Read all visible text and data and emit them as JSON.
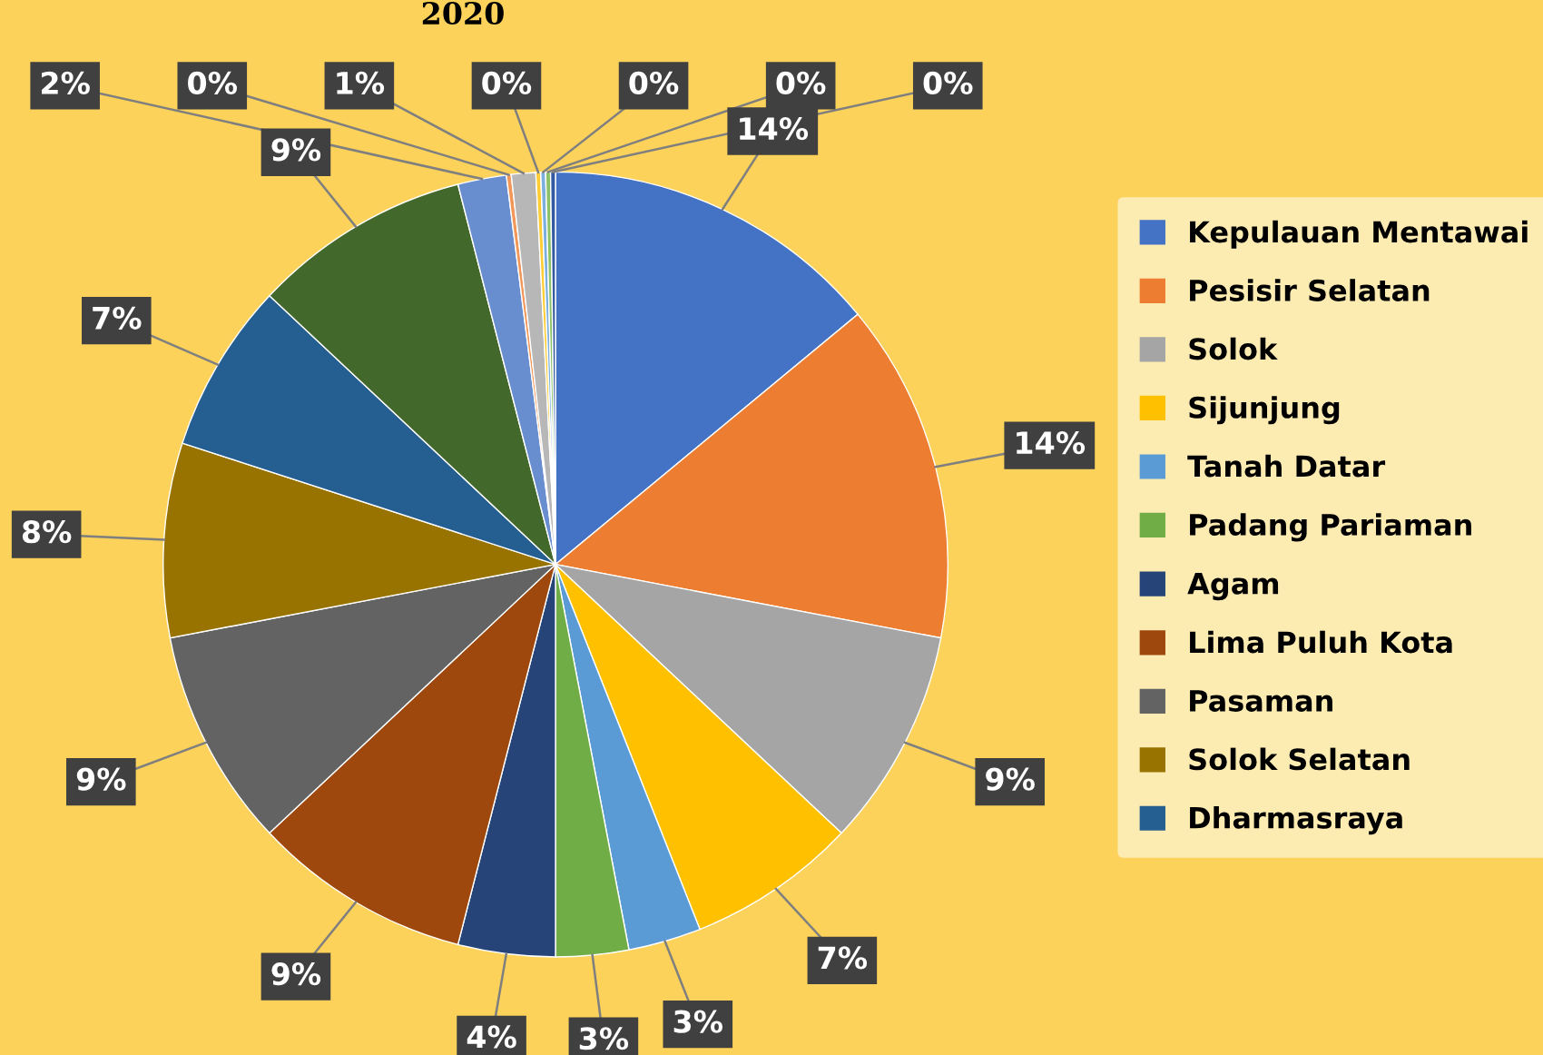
{
  "chart_data": {
    "type": "pie",
    "title": "2020",
    "categories": [
      "Kepulauan Mentawai",
      "Pesisir Selatan",
      "Solok",
      "Sijunjung",
      "Tanah Datar",
      "Padang Pariaman",
      "Agam",
      "Lima Puluh Kota",
      "Pasaman",
      "Solok Selatan",
      "Dharmasraya",
      null,
      null,
      null,
      null,
      null,
      null,
      null,
      null
    ],
    "values": [
      14,
      14,
      9,
      7,
      3,
      3,
      4,
      9,
      9,
      8,
      7,
      9,
      2,
      0.2,
      1,
      0.2,
      0.2,
      0.2,
      0.2
    ],
    "value_labels": [
      "14%",
      "14%",
      "9%",
      "7%",
      "3%",
      "3%",
      "4%",
      "9%",
      "9%",
      "8%",
      "7%",
      "9%",
      "2%",
      "0%",
      "1%",
      "0%",
      "0%",
      "0%",
      "0%"
    ],
    "colors": [
      "#4472c4",
      "#ed7d31",
      "#a5a5a5",
      "#ffc000",
      "#5b9bd5",
      "#70ad47",
      "#264478",
      "#9e480e",
      "#636363",
      "#997300",
      "#255e91",
      "#43682b",
      "#698ed0",
      "#f1975a",
      "#b7b7b7",
      "#ffcd33",
      "#7cafdd",
      "#8cc168",
      "#335aa1"
    ],
    "legend": "right"
  }
}
